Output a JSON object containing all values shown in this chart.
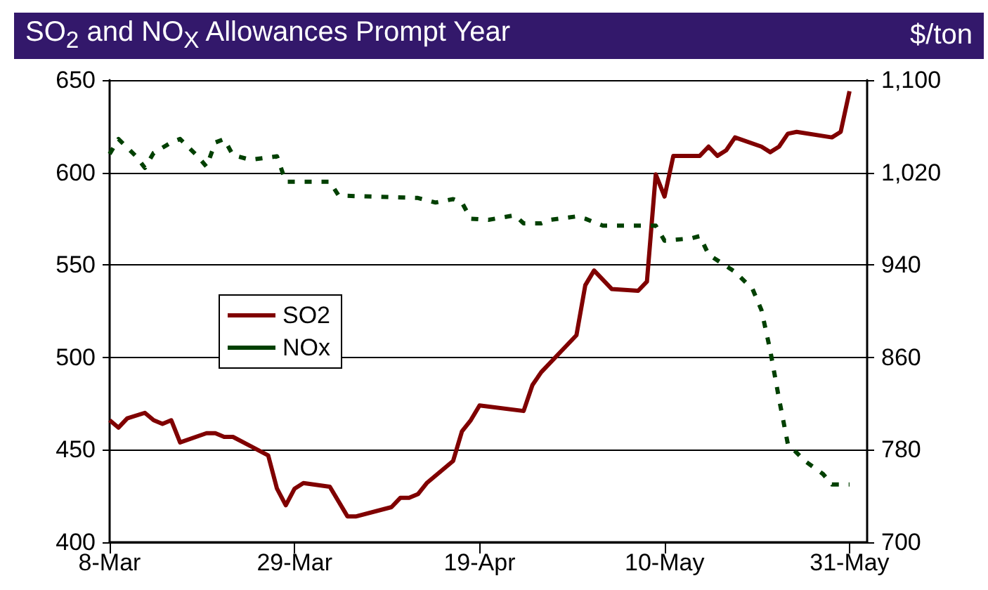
{
  "chart_data": {
    "type": "line",
    "title": "SO$_{2}$ and NO$_{X}$ Allowances Prompt Year",
    "y2label": "$/ton",
    "xlim": [
      "--03-08",
      "--06-02"
    ],
    "xticks": [
      {
        "value": "--03-08",
        "label": "8-Mar"
      },
      {
        "value": "--03-29",
        "label": "29-Mar"
      },
      {
        "value": "--04-19",
        "label": "19-Apr"
      },
      {
        "value": "--05-10",
        "label": "10-May"
      },
      {
        "value": "--05-31",
        "label": "31-May"
      }
    ],
    "ylim": [
      400,
      650
    ],
    "yticks": [
      400,
      450,
      500,
      550,
      600,
      650
    ],
    "y2lim": [
      700,
      1100
    ],
    "y2ticks": [
      700,
      {
        "value": 780,
        "label": "780"
      },
      {
        "value": 860,
        "label": "860"
      },
      {
        "value": 940,
        "label": "940"
      },
      {
        "value": 1020,
        "label": "1,020"
      },
      {
        "value": 1100,
        "label": "1,100"
      }
    ],
    "grid": "y",
    "legend": "left",
    "series": [
      {
        "name": "SO2",
        "color": "#800000",
        "line_style": "solid",
        "x": [
          "--03-08",
          "--03-09",
          "--03-10",
          "--03-12",
          "--03-13",
          "--03-14",
          "--03-15",
          "--03-16",
          "--03-19",
          "--03-20",
          "--03-21",
          "--03-22",
          "--03-24",
          "--03-26",
          "--03-27",
          "--03-28",
          "--03-29",
          "--03-30",
          "--04-02",
          "--04-04",
          "--04-05",
          "--04-09",
          "--04-10",
          "--04-11",
          "--04-12",
          "--04-13",
          "--04-16",
          "--04-17",
          "--04-18",
          "--04-19",
          "--04-24",
          "--04-25",
          "--04-26",
          "--04-30",
          "--05-01",
          "--05-02",
          "--05-04",
          "--05-07",
          "--05-08",
          "--05-09",
          "--05-10",
          "--05-11",
          "--05-14",
          "--05-15",
          "--05-16",
          "--05-17",
          "--05-18",
          "--05-21",
          "--05-22",
          "--05-23",
          "--05-24",
          "--05-25",
          "--05-29",
          "--05-30",
          "--05-31"
        ],
        "values": [
          466,
          462,
          467,
          470,
          466,
          464,
          466,
          454,
          459,
          459,
          457,
          457,
          452,
          447,
          429,
          420,
          429,
          432,
          430,
          414,
          414,
          419,
          424,
          424,
          426,
          432,
          444,
          460,
          466,
          474,
          471,
          485,
          492,
          512,
          539,
          547,
          537,
          536,
          541,
          599,
          587,
          609,
          609,
          614,
          609,
          612,
          619,
          614,
          611,
          614,
          621,
          622,
          619,
          622,
          644
        ]
      },
      {
        "name": "NOx",
        "color": "#004000",
        "line_style": "dashed",
        "axis": "y2",
        "x": [
          "--03-08",
          "--03-09",
          "--03-11",
          "--03-12",
          "--03-13",
          "--03-15",
          "--03-16",
          "--03-18",
          "--03-19",
          "--03-20",
          "--03-21",
          "--03-22",
          "--03-24",
          "--03-27",
          "--03-28",
          "--04-02",
          "--04-03",
          "--04-12",
          "--04-14",
          "--04-16",
          "--04-17",
          "--04-18",
          "--04-20",
          "--04-23",
          "--04-24",
          "--04-26",
          "--04-27",
          "--04-30",
          "--05-01",
          "--05-03",
          "--05-09",
          "--05-10",
          "--05-13",
          "--05-14",
          "--05-15",
          "--05-17",
          "--05-18",
          "--05-20",
          "--05-21",
          "--05-22",
          "--05-23",
          "--05-24",
          "--05-26",
          "--05-28",
          "--05-29",
          "--05-31"
        ],
        "values": [
          1036,
          1049,
          1034,
          1024,
          1037,
          1046,
          1049,
          1034,
          1025,
          1046,
          1049,
          1035,
          1031,
          1034,
          1012,
          1012,
          1000,
          998,
          994,
          997,
          994,
          980,
          979,
          983,
          976,
          976,
          979,
          982,
          980,
          974,
          974,
          961,
          963,
          965,
          949,
          939,
          934,
          919,
          901,
          866,
          824,
          785,
          770,
          759,
          750,
          750
        ]
      }
    ]
  }
}
